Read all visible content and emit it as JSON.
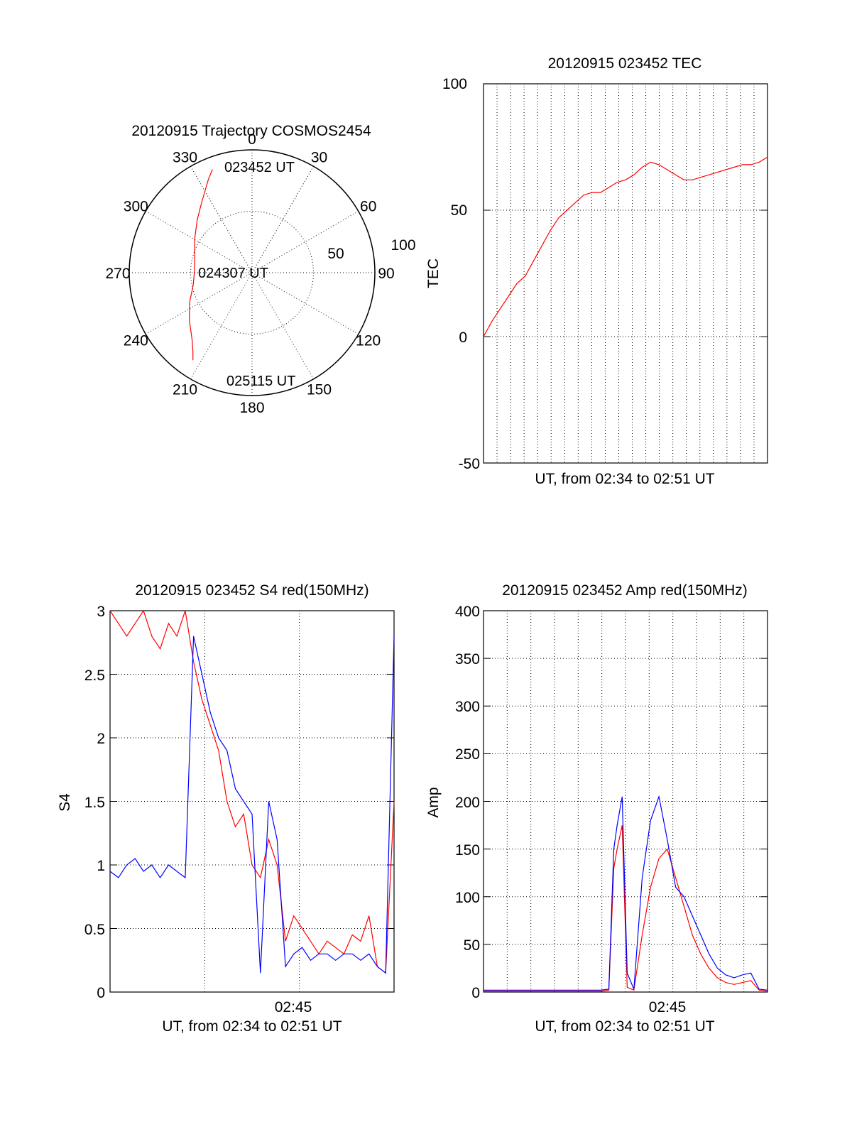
{
  "chart_data": [
    {
      "type": "polar",
      "title": "20120915 Trajectory COSMOS2454",
      "angle_labels": [
        "0",
        "30",
        "60",
        "90",
        "120",
        "150",
        "180",
        "210",
        "240",
        "270",
        "300",
        "330"
      ],
      "radial_labels": [
        "50",
        "100"
      ],
      "radial_range": [
        0,
        100
      ],
      "point_labels": [
        "023452 UT",
        "024307 UT",
        "025115 UT"
      ],
      "trajectory": {
        "color": "#ff0000",
        "azimuth_deg": [
          339,
          335,
          331,
          324,
          314,
          300,
          283,
          270,
          258,
          245,
          233,
          222,
          217,
          214
        ],
        "radius": [
          90,
          84,
          78,
          70,
          62,
          54,
          48,
          47,
          49,
          56,
          64,
          73,
          80,
          86
        ]
      }
    },
    {
      "type": "line",
      "title": "20120915 023452 TEC",
      "xlabel": "UT, from 02:34 to 02:51 UT",
      "ylabel": "TEC",
      "ylim": [
        -50,
        100
      ],
      "yticks": [
        "-50",
        "0",
        "50",
        "100"
      ],
      "xlim_min": [
        0,
        17
      ],
      "grid": true,
      "series": [
        {
          "color": "#ff0000",
          "x": [
            0,
            0.5,
            1,
            1.5,
            2,
            2.5,
            3,
            3.5,
            4,
            4.5,
            5,
            5.5,
            6,
            6.5,
            7,
            7.5,
            8,
            8.5,
            9,
            9.5,
            10,
            10.5,
            11,
            11.5,
            12,
            12.5,
            13,
            13.5,
            14,
            14.5,
            15,
            15.5,
            16,
            16.5,
            17
          ],
          "values": [
            0,
            6,
            11,
            16,
            21,
            24,
            30,
            36,
            42,
            47,
            50,
            53,
            56,
            57,
            57,
            59,
            61,
            62,
            64,
            67,
            69,
            68,
            66,
            64,
            62,
            62,
            63,
            64,
            65,
            66,
            67,
            68,
            68,
            69,
            71
          ]
        }
      ]
    },
    {
      "type": "line",
      "title": "20120915 023452 S4 red(150MHz)",
      "xlabel": "UT, from 02:34 to 02:51 UT",
      "ylabel": "S4",
      "ylim": [
        0,
        3
      ],
      "yticks": [
        "0",
        "0.5",
        "1",
        "1.5",
        "2",
        "2.5",
        "3"
      ],
      "xtick_label": "02:45",
      "xlim_min": [
        0,
        17
      ],
      "xtick_min": 11,
      "grid": true,
      "series": [
        {
          "color": "#ff0000",
          "x": [
            0,
            0.5,
            1,
            1.5,
            2,
            2.5,
            3,
            3.5,
            4,
            4.5,
            5,
            5.5,
            6,
            6.5,
            7,
            7.5,
            8,
            8.5,
            9,
            9.5,
            10,
            10.5,
            11,
            11.5,
            12,
            12.5,
            13,
            13.5,
            14,
            14.5,
            15,
            15.5,
            16,
            16.5,
            17
          ],
          "values": [
            3,
            2.9,
            2.8,
            2.9,
            3,
            2.8,
            2.7,
            2.9,
            2.8,
            3,
            2.6,
            2.3,
            2.1,
            1.9,
            1.5,
            1.3,
            1.4,
            1.0,
            0.9,
            1.2,
            1.0,
            0.4,
            0.6,
            0.5,
            0.4,
            0.3,
            0.4,
            0.35,
            0.3,
            0.45,
            0.4,
            0.6,
            0.2,
            0.15,
            1.5
          ]
        },
        {
          "color": "#0000ff",
          "x": [
            0,
            0.5,
            1,
            1.5,
            2,
            2.5,
            3,
            3.5,
            4,
            4.5,
            5,
            5.5,
            6,
            6.5,
            7,
            7.5,
            8,
            8.5,
            9,
            9.5,
            10,
            10.5,
            11,
            11.5,
            12,
            12.5,
            13,
            13.5,
            14,
            14.5,
            15,
            15.5,
            16,
            16.5,
            17
          ],
          "values": [
            0.95,
            0.9,
            1.0,
            1.05,
            0.95,
            1.0,
            0.9,
            1.0,
            0.95,
            0.9,
            2.8,
            2.5,
            2.2,
            2.0,
            1.9,
            1.6,
            1.5,
            1.4,
            0.15,
            1.5,
            1.2,
            0.2,
            0.3,
            0.35,
            0.25,
            0.3,
            0.3,
            0.25,
            0.3,
            0.3,
            0.25,
            0.3,
            0.2,
            0.15,
            2.8
          ]
        }
      ]
    },
    {
      "type": "line",
      "title": "20120915 023452 Amp red(150MHz)",
      "xlabel": "UT, from 02:34 to 02:51 UT",
      "ylabel": "Amp",
      "ylim": [
        0,
        400
      ],
      "yticks": [
        "0",
        "50",
        "100",
        "150",
        "200",
        "250",
        "300",
        "350",
        "400"
      ],
      "xtick_label": "02:45",
      "xlim_min": [
        0,
        17
      ],
      "xtick_min": 11,
      "grid": true,
      "series": [
        {
          "color": "#ff0000",
          "x": [
            0,
            1,
            2,
            3,
            4,
            5,
            6,
            7,
            7.5,
            7.8,
            8,
            8.3,
            8.6,
            9,
            9.5,
            10,
            10.5,
            11,
            11.5,
            12,
            12.5,
            13,
            13.5,
            14,
            14.5,
            15,
            15.5,
            16,
            16.5,
            17
          ],
          "values": [
            1,
            1,
            1,
            1,
            1,
            1,
            1,
            1,
            2,
            130,
            150,
            175,
            5,
            2,
            60,
            110,
            140,
            150,
            120,
            90,
            60,
            40,
            25,
            15,
            10,
            8,
            10,
            12,
            2,
            1
          ]
        },
        {
          "color": "#0000ff",
          "x": [
            0,
            1,
            2,
            3,
            4,
            5,
            6,
            7,
            7.5,
            7.8,
            8,
            8.3,
            8.6,
            9,
            9.5,
            10,
            10.5,
            11,
            11.5,
            12,
            12.5,
            13,
            13.5,
            14,
            14.5,
            15,
            15.5,
            16,
            16.5,
            17
          ],
          "values": [
            2,
            2,
            2,
            2,
            2,
            2,
            2,
            2,
            3,
            150,
            175,
            205,
            20,
            3,
            120,
            180,
            205,
            160,
            110,
            100,
            80,
            60,
            40,
            25,
            18,
            15,
            18,
            20,
            3,
            2
          ]
        }
      ]
    }
  ]
}
